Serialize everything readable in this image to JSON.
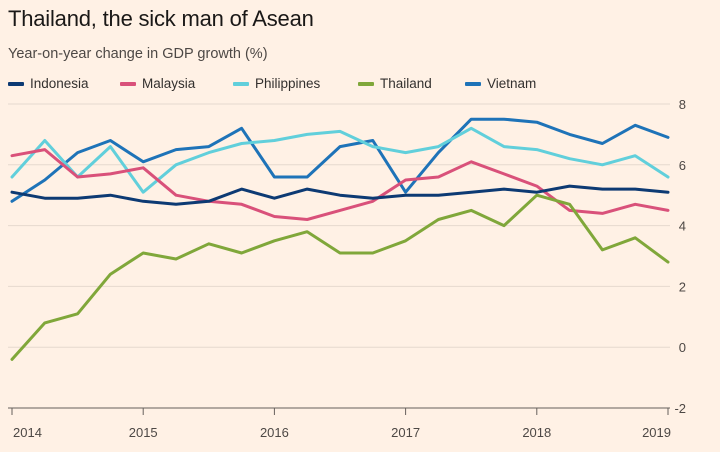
{
  "title": "Thailand, the sick man of Asean",
  "subtitle": "Year-on-year change in GDP growth (%)",
  "chart_data": {
    "type": "line",
    "title": "Thailand, the sick man of Asean",
    "subtitle": "Year-on-year change in GDP growth (%)",
    "ylim": [
      -2,
      8
    ],
    "yticks": [
      8,
      6,
      4,
      2,
      0,
      -2
    ],
    "xticks": [
      "2014",
      "2015",
      "2016",
      "2017",
      "2018",
      "2019"
    ],
    "x": [
      "2014 Q1",
      "2014 Q2",
      "2014 Q3",
      "2014 Q4",
      "2015 Q1",
      "2015 Q2",
      "2015 Q3",
      "2015 Q4",
      "2016 Q1",
      "2016 Q2",
      "2016 Q3",
      "2016 Q4",
      "2017 Q1",
      "2017 Q2",
      "2017 Q3",
      "2017 Q4",
      "2018 Q1",
      "2018 Q2",
      "2018 Q3",
      "2018 Q4",
      "2019 Q1"
    ],
    "legend_position": "top",
    "grid": "horizontal",
    "series": [
      {
        "name": "Indonesia",
        "color": "#0d3a73",
        "values": [
          5.1,
          4.9,
          4.9,
          5.0,
          4.8,
          4.7,
          4.8,
          5.2,
          4.9,
          5.2,
          5.0,
          4.9,
          5.0,
          5.0,
          5.1,
          5.2,
          5.1,
          5.3,
          5.2,
          5.2,
          5.1
        ]
      },
      {
        "name": "Malaysia",
        "color": "#d9517a",
        "values": [
          6.3,
          6.5,
          5.6,
          5.7,
          5.9,
          5.0,
          4.8,
          4.7,
          4.3,
          4.2,
          4.5,
          4.8,
          5.5,
          5.6,
          6.1,
          5.7,
          5.3,
          4.5,
          4.4,
          4.7,
          4.5
        ]
      },
      {
        "name": "Philippines",
        "color": "#61cfdb",
        "values": [
          5.6,
          6.8,
          5.6,
          6.6,
          5.1,
          6.0,
          6.4,
          6.7,
          6.8,
          7.0,
          7.1,
          6.6,
          6.4,
          6.6,
          7.2,
          6.6,
          6.5,
          6.2,
          6.0,
          6.3,
          5.6
        ]
      },
      {
        "name": "Thailand",
        "color": "#80a73a",
        "values": [
          -0.4,
          0.8,
          1.1,
          2.4,
          3.1,
          2.9,
          3.4,
          3.1,
          3.5,
          3.8,
          3.1,
          3.1,
          3.5,
          4.2,
          4.5,
          4.0,
          5.0,
          4.7,
          3.2,
          3.6,
          2.8
        ]
      },
      {
        "name": "Vietnam",
        "color": "#1e73b8",
        "values": [
          4.8,
          5.5,
          6.4,
          6.8,
          6.1,
          6.5,
          6.6,
          7.2,
          5.6,
          5.6,
          6.6,
          6.8,
          5.1,
          6.4,
          7.5,
          7.5,
          7.4,
          7.0,
          6.7,
          7.3,
          6.9
        ]
      }
    ]
  }
}
